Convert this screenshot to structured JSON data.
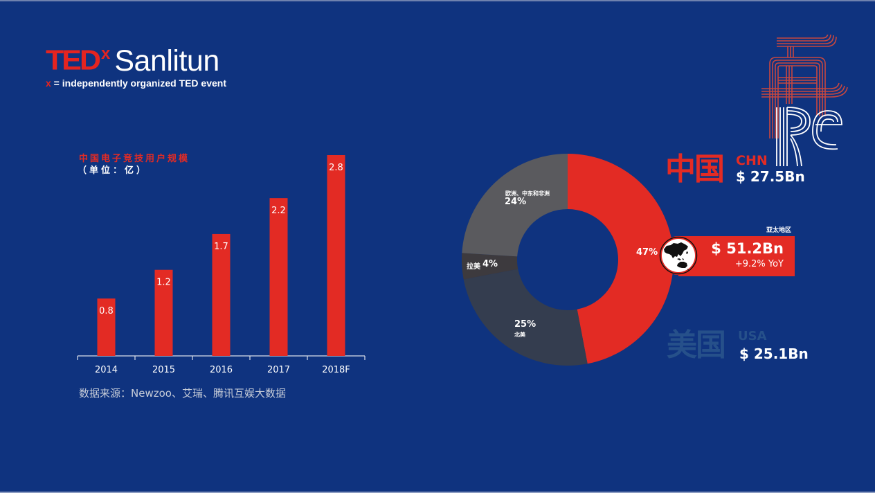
{
  "logo": {
    "brand": "TED",
    "superscript": "x",
    "name": "Sanlitun",
    "tagline_x": "x",
    "tagline": " = independently organized TED event"
  },
  "colors": {
    "background": "#0F337F",
    "accent_red": "#E32B24",
    "na_slate": "#343D4F",
    "latam_dark": "#3D3A3E",
    "europe_gray": "#5A5A5E",
    "usa_muted": "#26508A"
  },
  "bar_panel": {
    "title": "中国电子竞技用户规模",
    "unit": "（单位：亿）",
    "source": "数据来源：Newzoo、艾瑞、腾讯互娱大数据"
  },
  "donut_panel": {
    "segments": [
      {
        "name": "亚太地区",
        "pct_label": "47%"
      },
      {
        "name": "北美",
        "pct_label": "25%"
      },
      {
        "name": "拉美",
        "pct_label": "4%"
      },
      {
        "name": "欧洲、中东和非洲",
        "pct_label": "24%"
      }
    ],
    "apac_callout": {
      "region": "亚太地区",
      "value": "$ 51.2Bn",
      "yoy": "+9.2% YoY",
      "icon": "asia-pacific-map-icon"
    },
    "china": {
      "label_cn": "中国",
      "code": "CHN",
      "value": "$ 27.5Bn"
    },
    "usa": {
      "label_cn": "美国",
      "code": "USA",
      "value": "$ 25.1Bn"
    }
  },
  "chart_data": [
    {
      "type": "bar",
      "title": "中国电子竞技用户规模",
      "subtitle": "（单位：亿）",
      "categories": [
        "2014",
        "2015",
        "2016",
        "2017",
        "2018F"
      ],
      "values": [
        0.8,
        1.2,
        1.7,
        2.2,
        2.8
      ],
      "data_labels": [
        "0.8",
        "1.2",
        "1.7",
        "2.2",
        "2.8"
      ],
      "xlabel": "",
      "ylabel": "",
      "ylim": [
        0,
        2.8
      ],
      "grid": false,
      "y_axis_visible": false,
      "bar_color": "#E32B24",
      "source": "数据来源：Newzoo、艾瑞、腾讯互娱大数据"
    },
    {
      "type": "pie",
      "variant": "donut",
      "start_angle": "12 o'clock, clockwise",
      "labels": [
        "亚太地区",
        "北美",
        "拉美",
        "欧洲、中东和非洲"
      ],
      "values": [
        47,
        25,
        4,
        24
      ],
      "colors": [
        "#E32B24",
        "#343D4F",
        "#3D3A3E",
        "#5A5A5E"
      ],
      "annotations": [
        {
          "region": "亚太地区",
          "value": "$ 51.2Bn",
          "yoy": "+9.2% YoY"
        },
        {
          "region": "中国",
          "code": "CHN",
          "value": "$ 27.5Bn"
        },
        {
          "region": "美国",
          "code": "USA",
          "value": "$ 25.1Bn"
        }
      ]
    }
  ]
}
